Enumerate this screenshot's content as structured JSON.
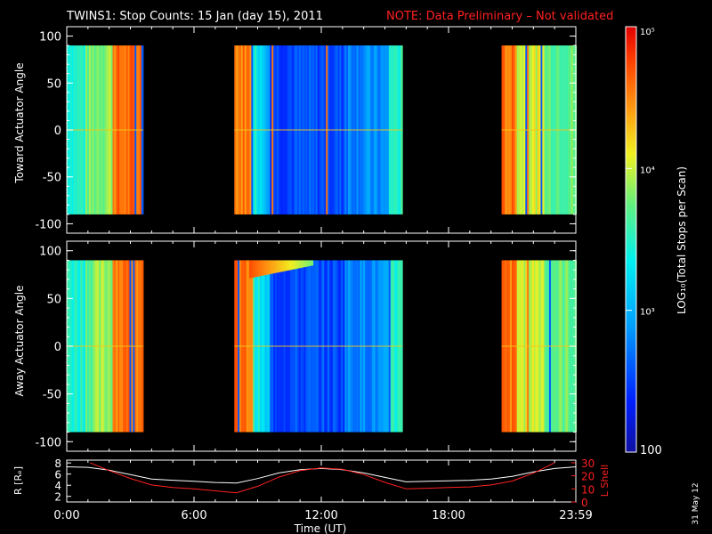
{
  "title": "TWINS1: Stop Counts: 15 Jan (day  15), 2011",
  "note": "NOTE: Data Preliminary – Not validated",
  "date_stamp": "31 May 12",
  "chart_data": [
    {
      "type": "heatmap",
      "ylabel": "Toward Actuator Angle",
      "yticks": [
        100,
        50,
        0,
        -50,
        -100
      ],
      "ylim": [
        -110,
        110
      ],
      "data_ylim": [
        -90,
        90
      ],
      "xlim_hours": [
        0,
        24
      ],
      "data_segments_hours": [
        [
          0,
          3.6
        ],
        [
          7.9,
          15.8
        ],
        [
          20.5,
          24
        ]
      ]
    },
    {
      "type": "heatmap",
      "ylabel": "Away Actuator Angle",
      "yticks": [
        100,
        50,
        0,
        -50,
        -100
      ],
      "ylim": [
        -110,
        110
      ],
      "data_ylim": [
        -90,
        90
      ],
      "xlim_hours": [
        0,
        24
      ],
      "data_segments_hours": [
        [
          0,
          3.6
        ],
        [
          7.9,
          15.8
        ],
        [
          20.5,
          24
        ]
      ]
    },
    {
      "type": "line",
      "ylabel_left": "R [Rₑ]",
      "ylabel_right": "L Shell",
      "left_ticks": [
        2,
        4,
        6,
        8
      ],
      "right_ticks": [
        0,
        10,
        20,
        30
      ],
      "xlabel": "Time (UT)",
      "xticks": [
        "0:00",
        "6:00",
        "12:00",
        "18:00",
        "23:59"
      ],
      "series": [
        {
          "name": "R",
          "color": "#ffffff",
          "x": [
            0,
            1,
            2,
            3,
            4,
            5,
            6,
            7,
            8,
            9,
            10,
            11,
            12,
            13,
            14,
            15,
            16,
            17,
            18,
            19,
            20,
            21,
            22,
            23,
            24
          ],
          "y": [
            7.3,
            7.2,
            6.7,
            5.9,
            5.1,
            4.9,
            4.7,
            4.5,
            4.4,
            5.2,
            6.2,
            6.8,
            7.0,
            6.8,
            6.2,
            5.4,
            4.6,
            4.7,
            4.8,
            4.9,
            5.1,
            5.6,
            6.4,
            7.0,
            7.3
          ]
        },
        {
          "name": "L Shell",
          "color": "#ff2020",
          "x": [
            1.1,
            2,
            3,
            4,
            5,
            6,
            7,
            8,
            9,
            10,
            11,
            12,
            13,
            14,
            15,
            16,
            17,
            18,
            19,
            20,
            21,
            22,
            23
          ],
          "y": [
            30,
            24,
            18,
            13,
            11,
            10,
            8.5,
            7,
            12,
            19,
            24,
            26,
            25,
            21,
            15,
            10,
            10.5,
            11,
            11.5,
            13,
            16,
            22,
            30
          ]
        }
      ]
    }
  ],
  "colorbar": {
    "label": "LOG₁₀(Total Stops per Scan)",
    "ticks": [
      "10⁵",
      "10⁴",
      "10³",
      "100"
    ],
    "tick_values": [
      100000,
      10000,
      1000,
      100
    ]
  }
}
